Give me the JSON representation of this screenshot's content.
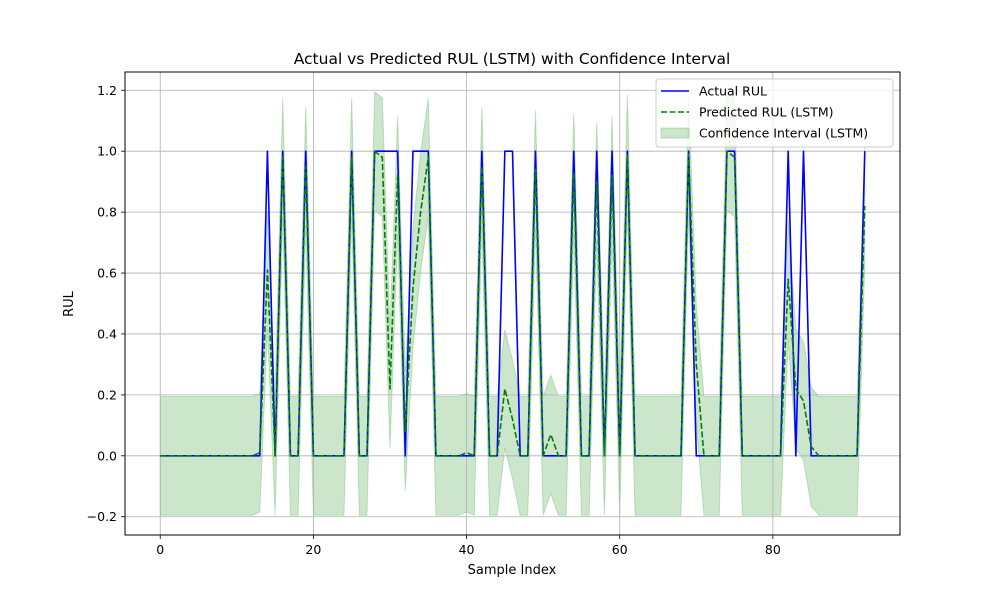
{
  "chart_data": {
    "type": "line",
    "title": "Actual vs Predicted RUL (LSTM) with Confidence Interval",
    "xlabel": "Sample Index",
    "ylabel": "RUL",
    "xlim": [
      -4.6,
      96.6
    ],
    "ylim": [
      -0.26,
      1.26
    ],
    "xticks": [
      0,
      20,
      40,
      60,
      80
    ],
    "yticks": [
      -0.2,
      0.0,
      0.2,
      0.4,
      0.6,
      0.8,
      1.0,
      1.2
    ],
    "ytick_labels": [
      "−0.2",
      "0.0",
      "0.2",
      "0.4",
      "0.6",
      "0.8",
      "1.0",
      "1.2"
    ],
    "grid": true,
    "legend_position": "top-right",
    "legend": [
      {
        "label": "Actual RUL",
        "kind": "line",
        "color": "#0000ff"
      },
      {
        "label": "Predicted RUL (LSTM)",
        "kind": "dashed",
        "color": "#008000"
      },
      {
        "label": "Confidence Interval (LSTM)",
        "kind": "band",
        "color": "#008000"
      }
    ],
    "series": [
      {
        "name": "Actual RUL",
        "color": "#0000ff",
        "style": "solid",
        "x": [
          0,
          1,
          2,
          3,
          4,
          5,
          6,
          7,
          8,
          9,
          10,
          11,
          12,
          13,
          14,
          15,
          16,
          17,
          18,
          19,
          20,
          21,
          22,
          23,
          24,
          25,
          26,
          27,
          28,
          29,
          30,
          31,
          32,
          33,
          34,
          35,
          36,
          37,
          38,
          39,
          40,
          41,
          42,
          43,
          44,
          45,
          46,
          47,
          48,
          49,
          50,
          51,
          52,
          53,
          54,
          55,
          56,
          57,
          58,
          59,
          60,
          61,
          62,
          63,
          64,
          65,
          66,
          67,
          68,
          69,
          70,
          71,
          72,
          73,
          74,
          75,
          76,
          77,
          78,
          79,
          80,
          81,
          82,
          83,
          84,
          85,
          86,
          87,
          88,
          89,
          90,
          91,
          92
        ],
        "y": [
          0,
          0,
          0,
          0,
          0,
          0,
          0,
          0,
          0,
          0,
          0,
          0,
          0,
          0,
          1,
          0,
          1,
          0,
          0,
          1,
          0,
          0,
          0,
          0,
          0,
          1,
          0,
          0,
          1,
          1,
          1,
          1,
          0,
          1,
          1,
          1,
          0,
          0,
          0,
          0,
          0,
          0,
          1,
          0,
          0,
          1,
          1,
          0,
          0,
          1,
          0,
          0,
          0,
          0,
          1,
          0,
          0,
          1,
          0,
          1,
          0,
          1,
          0,
          0,
          0,
          0,
          0,
          0,
          0,
          1,
          0,
          0,
          0,
          0,
          1,
          1,
          0,
          0,
          0,
          0,
          0,
          0,
          1,
          0,
          1,
          0,
          0,
          0,
          0,
          0,
          0,
          0,
          1
        ]
      },
      {
        "name": "Predicted RUL (LSTM)",
        "color": "#008000",
        "style": "dashed",
        "x": [
          0,
          1,
          2,
          3,
          4,
          5,
          6,
          7,
          8,
          9,
          10,
          11,
          12,
          13,
          14,
          15,
          16,
          17,
          18,
          19,
          20,
          21,
          22,
          23,
          24,
          25,
          26,
          27,
          28,
          29,
          30,
          31,
          32,
          33,
          34,
          35,
          36,
          37,
          38,
          39,
          40,
          41,
          42,
          43,
          44,
          45,
          46,
          47,
          48,
          49,
          50,
          51,
          52,
          53,
          54,
          55,
          56,
          57,
          58,
          59,
          60,
          61,
          62,
          63,
          64,
          65,
          66,
          67,
          68,
          69,
          70,
          71,
          72,
          73,
          74,
          75,
          76,
          77,
          78,
          79,
          80,
          81,
          82,
          83,
          84,
          85,
          86,
          87,
          88,
          89,
          90,
          91,
          92
        ],
        "y": [
          0,
          0,
          0,
          0,
          0,
          0,
          0,
          0,
          0,
          0,
          0,
          0,
          0,
          0.01,
          0.61,
          0.0,
          0.98,
          0.0,
          0.0,
          0.95,
          0.0,
          0.0,
          0.0,
          0.0,
          0.0,
          0.98,
          0.0,
          0.0,
          1.0,
          0.98,
          0.22,
          0.92,
          0.08,
          0.55,
          0.8,
          0.98,
          0.0,
          0.0,
          0.0,
          0.0,
          0.01,
          0.0,
          0.95,
          0.0,
          0.0,
          0.22,
          0.12,
          0.0,
          0.0,
          0.94,
          0.0,
          0.07,
          0.0,
          0.0,
          0.93,
          0.0,
          0.0,
          0.9,
          0.0,
          0.92,
          0.0,
          0.99,
          0.0,
          0.0,
          0.0,
          0.0,
          0.0,
          0.0,
          0.0,
          0.99,
          0.3,
          0.0,
          0.0,
          0.0,
          1.0,
          0.98,
          0.0,
          0.0,
          0.0,
          0.0,
          0.0,
          0.0,
          0.58,
          0.22,
          0.18,
          0.03,
          0.0,
          0.0,
          0.0,
          0.0,
          0.0,
          0.0,
          0.82
        ]
      }
    ],
    "band": {
      "name": "Confidence Interval (LSTM)",
      "color": "#008000",
      "opacity": 0.2,
      "half_width": 0.195
    }
  }
}
